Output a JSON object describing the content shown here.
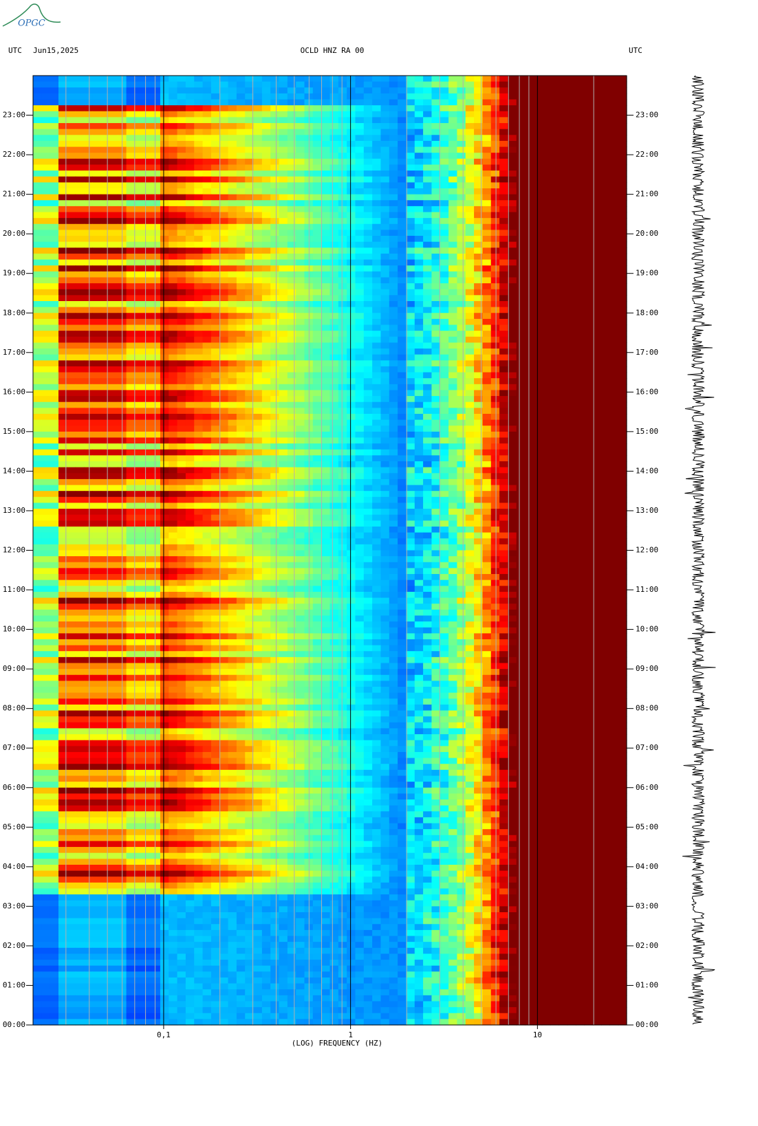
{
  "header": {
    "logo": "OPGC",
    "left_label": "UTC",
    "date": "Jun15,2025",
    "station": "OCLD HNZ RA 00",
    "right_label": "UTC"
  },
  "chart_data": {
    "type": "spectrogram",
    "xlabel": "(LOG) FREQUENCY (HZ)",
    "xscale": "log",
    "xlim": [
      0.02,
      30
    ],
    "xticks": [
      {
        "value": 0.1,
        "label": "0,1"
      },
      1,
      10
    ],
    "xgrid": [
      0.03,
      0.04,
      0.05,
      0.06,
      0.07,
      0.08,
      0.09,
      0.2,
      0.3,
      0.4,
      0.5,
      0.6,
      0.7,
      0.8,
      0.9,
      2,
      3,
      4,
      5,
      6,
      7,
      8,
      9,
      20
    ],
    "ylim": [
      0,
      24
    ],
    "yticks": [
      {
        "value": 0,
        "label": "00:00"
      },
      {
        "value": 1,
        "label": "01:00"
      },
      {
        "value": 2,
        "label": "02:00"
      },
      {
        "value": 3,
        "label": "03:00"
      },
      {
        "value": 4,
        "label": "04:00"
      },
      {
        "value": 5,
        "label": "05:00"
      },
      {
        "value": 6,
        "label": "06:00"
      },
      {
        "value": 7,
        "label": "07:00"
      },
      {
        "value": 8,
        "label": "08:00"
      },
      {
        "value": 9,
        "label": "09:00"
      },
      {
        "value": 10,
        "label": "10:00"
      },
      {
        "value": 11,
        "label": "11:00"
      },
      {
        "value": 12,
        "label": "12:00"
      },
      {
        "value": 13,
        "label": "13:00"
      },
      {
        "value": 14,
        "label": "14:00"
      },
      {
        "value": 15,
        "label": "15:00"
      },
      {
        "value": 16,
        "label": "16:00"
      },
      {
        "value": 17,
        "label": "17:00"
      },
      {
        "value": 18,
        "label": "18:00"
      },
      {
        "value": 19,
        "label": "19:00"
      },
      {
        "value": 20,
        "label": "20:00"
      },
      {
        "value": 21,
        "label": "21:00"
      },
      {
        "value": 22,
        "label": "22:00"
      },
      {
        "value": 23,
        "label": "23:00"
      }
    ]
  }
}
